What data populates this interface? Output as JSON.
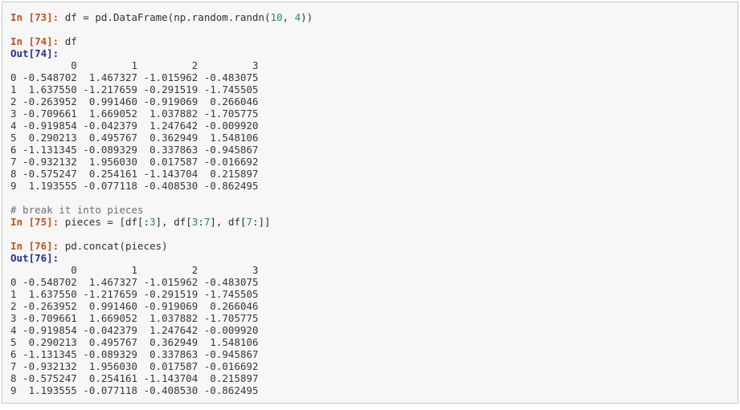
{
  "meta": {
    "page_bg": "#ffffff",
    "box": {
      "bg": "#f7f7f7",
      "border": "#c6c6c6"
    }
  },
  "palette": {
    "prompt_in": "#c0531d",
    "prompt_out": "#2a2e94",
    "number": "#238c5c",
    "comment": "#6c6e6e",
    "code": "#303030",
    "output": "#383838"
  },
  "cells": [
    {
      "kind": "code",
      "tokens": [
        {
          "text": "In [73]: ",
          "style": "prompt_in"
        },
        {
          "text": "df = pd.DataFrame(np.random.randn(",
          "style": "code"
        },
        {
          "text": "10",
          "style": "number"
        },
        {
          "text": ", ",
          "style": "code"
        },
        {
          "text": "4",
          "style": "number"
        },
        {
          "text": "))",
          "style": "code"
        }
      ]
    },
    {
      "kind": "blank"
    },
    {
      "kind": "code",
      "tokens": [
        {
          "text": "In [74]: ",
          "style": "prompt_in"
        },
        {
          "text": "df",
          "style": "code"
        }
      ]
    },
    {
      "kind": "code",
      "tokens": [
        {
          "text": "Out[74]:",
          "style": "prompt_out"
        }
      ]
    },
    {
      "kind": "table",
      "frame": "out74"
    },
    {
      "kind": "blank"
    },
    {
      "kind": "code",
      "tokens": [
        {
          "text": "# break it into pieces",
          "style": "comment"
        }
      ]
    },
    {
      "kind": "code",
      "tokens": [
        {
          "text": "In [75]: ",
          "style": "prompt_in"
        },
        {
          "text": "pieces = [df[:",
          "style": "code"
        },
        {
          "text": "3",
          "style": "number"
        },
        {
          "text": "], df[",
          "style": "code"
        },
        {
          "text": "3",
          "style": "number"
        },
        {
          "text": ":",
          "style": "code"
        },
        {
          "text": "7",
          "style": "number"
        },
        {
          "text": "], df[",
          "style": "code"
        },
        {
          "text": "7",
          "style": "number"
        },
        {
          "text": ":]]",
          "style": "code"
        }
      ]
    },
    {
      "kind": "blank"
    },
    {
      "kind": "code",
      "tokens": [
        {
          "text": "In [76]: ",
          "style": "prompt_in"
        },
        {
          "text": "pd.concat(pieces)",
          "style": "code"
        }
      ]
    },
    {
      "kind": "code",
      "tokens": [
        {
          "text": "Out[76]:",
          "style": "prompt_out"
        }
      ]
    },
    {
      "kind": "table",
      "frame": "out76"
    }
  ],
  "frames": {
    "out74": {
      "columns": [
        "0",
        "1",
        "2",
        "3"
      ],
      "rows": [
        {
          "index": "0",
          "values": [
            "-0.548702",
            "1.467327",
            "-1.015962",
            "-0.483075"
          ]
        },
        {
          "index": "1",
          "values": [
            "1.637550",
            "-1.217659",
            "-0.291519",
            "-1.745505"
          ]
        },
        {
          "index": "2",
          "values": [
            "-0.263952",
            "0.991460",
            "-0.919069",
            "0.266046"
          ]
        },
        {
          "index": "3",
          "values": [
            "-0.709661",
            "1.669052",
            "1.037882",
            "-1.705775"
          ]
        },
        {
          "index": "4",
          "values": [
            "-0.919854",
            "-0.042379",
            "1.247642",
            "-0.009920"
          ]
        },
        {
          "index": "5",
          "values": [
            "0.290213",
            "0.495767",
            "0.362949",
            "1.548106"
          ]
        },
        {
          "index": "6",
          "values": [
            "-1.131345",
            "-0.089329",
            "0.337863",
            "-0.945867"
          ]
        },
        {
          "index": "7",
          "values": [
            "-0.932132",
            "1.956030",
            "0.017587",
            "-0.016692"
          ]
        },
        {
          "index": "8",
          "values": [
            "-0.575247",
            "0.254161",
            "-1.143704",
            "0.215897"
          ]
        },
        {
          "index": "9",
          "values": [
            "1.193555",
            "-0.077118",
            "-0.408530",
            "-0.862495"
          ]
        }
      ]
    },
    "out76": {
      "columns": [
        "0",
        "1",
        "2",
        "3"
      ],
      "rows": [
        {
          "index": "0",
          "values": [
            "-0.548702",
            "1.467327",
            "-1.015962",
            "-0.483075"
          ]
        },
        {
          "index": "1",
          "values": [
            "1.637550",
            "-1.217659",
            "-0.291519",
            "-1.745505"
          ]
        },
        {
          "index": "2",
          "values": [
            "-0.263952",
            "0.991460",
            "-0.919069",
            "0.266046"
          ]
        },
        {
          "index": "3",
          "values": [
            "-0.709661",
            "1.669052",
            "1.037882",
            "-1.705775"
          ]
        },
        {
          "index": "4",
          "values": [
            "-0.919854",
            "-0.042379",
            "1.247642",
            "-0.009920"
          ]
        },
        {
          "index": "5",
          "values": [
            "0.290213",
            "0.495767",
            "0.362949",
            "1.548106"
          ]
        },
        {
          "index": "6",
          "values": [
            "-1.131345",
            "-0.089329",
            "0.337863",
            "-0.945867"
          ]
        },
        {
          "index": "7",
          "values": [
            "-0.932132",
            "1.956030",
            "0.017587",
            "-0.016692"
          ]
        },
        {
          "index": "8",
          "values": [
            "-0.575247",
            "0.254161",
            "-1.143704",
            "0.215897"
          ]
        },
        {
          "index": "9",
          "values": [
            "1.193555",
            "-0.077118",
            "-0.408530",
            "-0.862495"
          ]
        }
      ]
    }
  }
}
